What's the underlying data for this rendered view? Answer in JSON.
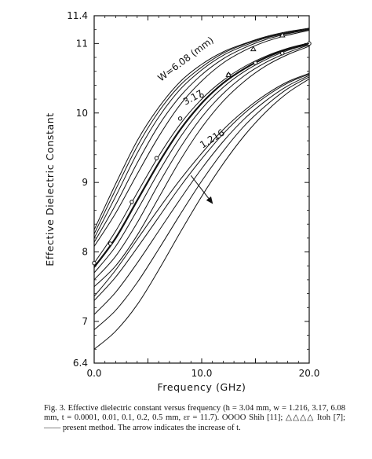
{
  "chart_data": {
    "type": "line",
    "title": "",
    "xlabel": "Frequency (GHz)",
    "ylabel": "Effective Dielectric Constant",
    "xlim": [
      0,
      20
    ],
    "ylim": [
      6.4,
      11.4
    ],
    "x_ticks": [
      0,
      5,
      10,
      15,
      20
    ],
    "x_tick_labels": [
      "0.0",
      "",
      "10.0",
      "",
      "20.0"
    ],
    "y_ticks": [
      6.4,
      7,
      8,
      9,
      10,
      11,
      11.4
    ],
    "y_tick_labels": [
      "6.4",
      "7",
      "8",
      "9",
      "10",
      "11",
      "11.4"
    ],
    "grid": false,
    "legend": "none",
    "annotations": [
      "W=6.08 (mm)",
      "3.17",
      "1.216"
    ],
    "arrow": {
      "from": [
        9.0,
        9.1
      ],
      "to": [
        11.0,
        8.7
      ]
    },
    "series": [
      {
        "name": "",
        "group": "W=6.08 (mm)",
        "x": [
          0,
          2,
          4,
          6,
          8,
          10,
          12,
          14,
          16,
          18,
          20
        ],
        "y": [
          8.32,
          8.98,
          9.6,
          10.08,
          10.45,
          10.7,
          10.88,
          11.0,
          11.1,
          11.17,
          11.22
        ]
      },
      {
        "name": "",
        "group": "W=6.08 (mm)",
        "x": [
          0,
          2,
          4,
          6,
          8,
          10,
          12,
          14,
          16,
          18,
          20
        ],
        "y": [
          8.26,
          8.9,
          9.52,
          10.02,
          10.4,
          10.66,
          10.86,
          10.99,
          11.09,
          11.16,
          11.21
        ]
      },
      {
        "name": "",
        "group": "W=6.08 (mm)",
        "x": [
          0,
          2,
          4,
          6,
          8,
          10,
          12,
          14,
          16,
          18,
          20
        ],
        "y": [
          8.2,
          8.8,
          9.42,
          9.94,
          10.34,
          10.62,
          10.83,
          10.97,
          11.08,
          11.15,
          11.21
        ]
      },
      {
        "name": "",
        "group": "W=6.08 (mm)",
        "x": [
          0,
          2,
          4,
          6,
          8,
          10,
          12,
          14,
          16,
          18,
          20
        ],
        "y": [
          8.14,
          8.68,
          9.28,
          9.82,
          10.24,
          10.55,
          10.78,
          10.94,
          11.06,
          11.14,
          11.2
        ]
      },
      {
        "name": "",
        "group": "W=6.08 (mm)",
        "x": [
          0,
          2,
          4,
          6,
          8,
          10,
          12,
          14,
          16,
          18,
          20
        ],
        "y": [
          8.08,
          8.56,
          9.12,
          9.66,
          10.12,
          10.46,
          10.72,
          10.9,
          11.03,
          11.12,
          11.19
        ]
      },
      {
        "name": "",
        "group": "3.17",
        "x": [
          0,
          2,
          4,
          6,
          8,
          10,
          12,
          14,
          16,
          18,
          20
        ],
        "y": [
          7.84,
          8.3,
          8.85,
          9.38,
          9.84,
          10.2,
          10.47,
          10.67,
          10.82,
          10.93,
          11.01
        ]
      },
      {
        "name": "",
        "group": "3.17",
        "x": [
          0,
          2,
          4,
          6,
          8,
          10,
          12,
          14,
          16,
          18,
          20
        ],
        "y": [
          7.78,
          8.2,
          8.74,
          9.28,
          9.76,
          10.14,
          10.43,
          10.64,
          10.8,
          10.92,
          11.0
        ]
      },
      {
        "name": "",
        "group": "3.17",
        "x": [
          0,
          2,
          4,
          6,
          8,
          10,
          12,
          14,
          16,
          18,
          20
        ],
        "y": [
          7.7,
          8.08,
          8.6,
          9.15,
          9.65,
          10.06,
          10.37,
          10.6,
          10.77,
          10.9,
          10.99
        ]
      },
      {
        "name": "",
        "group": "3.17",
        "x": [
          0,
          2,
          4,
          6,
          8,
          10,
          12,
          14,
          16,
          18,
          20
        ],
        "y": [
          7.6,
          7.94,
          8.42,
          8.98,
          9.5,
          9.94,
          10.28,
          10.54,
          10.73,
          10.87,
          10.98
        ]
      },
      {
        "name": "",
        "group": "3.17",
        "x": [
          0,
          2,
          4,
          6,
          8,
          10,
          12,
          14,
          16,
          18,
          20
        ],
        "y": [
          7.5,
          7.8,
          8.24,
          8.78,
          9.32,
          9.79,
          10.17,
          10.46,
          10.68,
          10.84,
          10.96
        ]
      },
      {
        "name": "",
        "group": "1.216",
        "x": [
          0,
          2,
          4,
          6,
          8,
          10,
          12,
          14,
          16,
          18,
          20
        ],
        "y": [
          7.36,
          7.74,
          8.18,
          8.62,
          9.04,
          9.42,
          9.76,
          10.04,
          10.27,
          10.45,
          10.57
        ]
      },
      {
        "name": "",
        "group": "1.216",
        "x": [
          0,
          2,
          4,
          6,
          8,
          10,
          12,
          14,
          16,
          18,
          20
        ],
        "y": [
          7.3,
          7.64,
          8.06,
          8.5,
          8.94,
          9.34,
          9.7,
          10.0,
          10.24,
          10.43,
          10.56
        ]
      },
      {
        "name": "",
        "group": "1.216",
        "x": [
          0,
          2,
          4,
          6,
          8,
          10,
          12,
          14,
          16,
          18,
          20
        ],
        "y": [
          7.1,
          7.42,
          7.84,
          8.3,
          8.76,
          9.2,
          9.59,
          9.92,
          10.18,
          10.39,
          10.54
        ]
      },
      {
        "name": "",
        "group": "1.216",
        "x": [
          0,
          2,
          4,
          6,
          8,
          10,
          12,
          14,
          16,
          18,
          20
        ],
        "y": [
          6.88,
          7.16,
          7.56,
          8.04,
          8.54,
          9.02,
          9.45,
          9.82,
          10.11,
          10.35,
          10.52
        ]
      },
      {
        "name": "",
        "group": "1.216",
        "x": [
          0,
          2,
          4,
          6,
          8,
          10,
          12,
          14,
          16,
          18,
          20
        ],
        "y": [
          6.6,
          6.86,
          7.24,
          7.74,
          8.28,
          8.8,
          9.27,
          9.68,
          10.02,
          10.29,
          10.49
        ]
      }
    ],
    "markers": [
      {
        "name": "",
        "symbol": "circle",
        "group": "3.17",
        "x": [
          0.0,
          1.5,
          3.5,
          5.8,
          8.0,
          10.0,
          12.5,
          15.0,
          17.5,
          20.0
        ],
        "y": [
          7.84,
          8.12,
          8.72,
          9.35,
          9.92,
          10.25,
          10.55,
          10.72,
          10.86,
          11.0
        ]
      },
      {
        "name": "",
        "symbol": "triangle",
        "group": "W=6.08 (mm)",
        "x": [
          12.5,
          14.8,
          17.5
        ],
        "y": [
          10.55,
          10.92,
          11.12
        ]
      }
    ],
    "caption": {
      "fig_label": "Fig. 3.",
      "text": "Effective dielectric constant versus frequency (h = 3.04 mm, w = 1.216, 3.17, 6.08 mm, t = 0.0001, 0.01, 0.1, 0.2, 0.5 mm, εr = 11.7). OOOO Shih [11]; △△△△ Itoh [7]; —— present method. The arrow indicates the increase of t."
    }
  }
}
